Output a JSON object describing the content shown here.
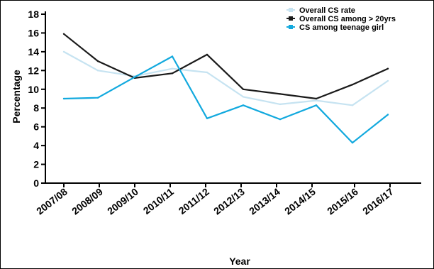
{
  "chart_data": {
    "type": "line",
    "title": "",
    "xlabel": "Year",
    "ylabel": "Percentage",
    "ylim": [
      0,
      18
    ],
    "yticks": [
      0,
      2,
      4,
      6,
      8,
      10,
      12,
      14,
      16,
      18
    ],
    "x_tick_labels": [
      "2007/08",
      "2008/09",
      "2009/10",
      "2010/11",
      "2011/12",
      "2012/13",
      "2013/14",
      "2014/15",
      "2015/16",
      "2016/17"
    ],
    "x_point_labels": [
      "2007/08",
      "2008/09",
      "2009/10",
      "2010/11",
      "2011/12",
      "2012/13",
      "2013/14",
      "2014/15",
      "2015/16",
      "2016/17"
    ],
    "legend_position": "top-right",
    "grid": false,
    "series": [
      {
        "name": "Overall CS rate",
        "color": "#c6e3f1",
        "values": [
          14.0,
          12.0,
          11.4,
          12.2,
          11.8,
          9.2,
          8.4,
          8.8,
          8.3,
          10.9
        ]
      },
      {
        "name": "Overall CS among > 20yrs",
        "color": "#1a1a1a",
        "values": [
          15.9,
          13.0,
          11.2,
          11.7,
          13.7,
          10.0,
          9.5,
          9.0,
          10.5,
          12.2
        ]
      },
      {
        "name": "CS among teenage girl",
        "color": "#12a9de",
        "values": [
          9.0,
          9.1,
          11.3,
          13.5,
          6.9,
          8.3,
          6.8,
          8.3,
          4.3,
          7.3
        ]
      }
    ]
  }
}
